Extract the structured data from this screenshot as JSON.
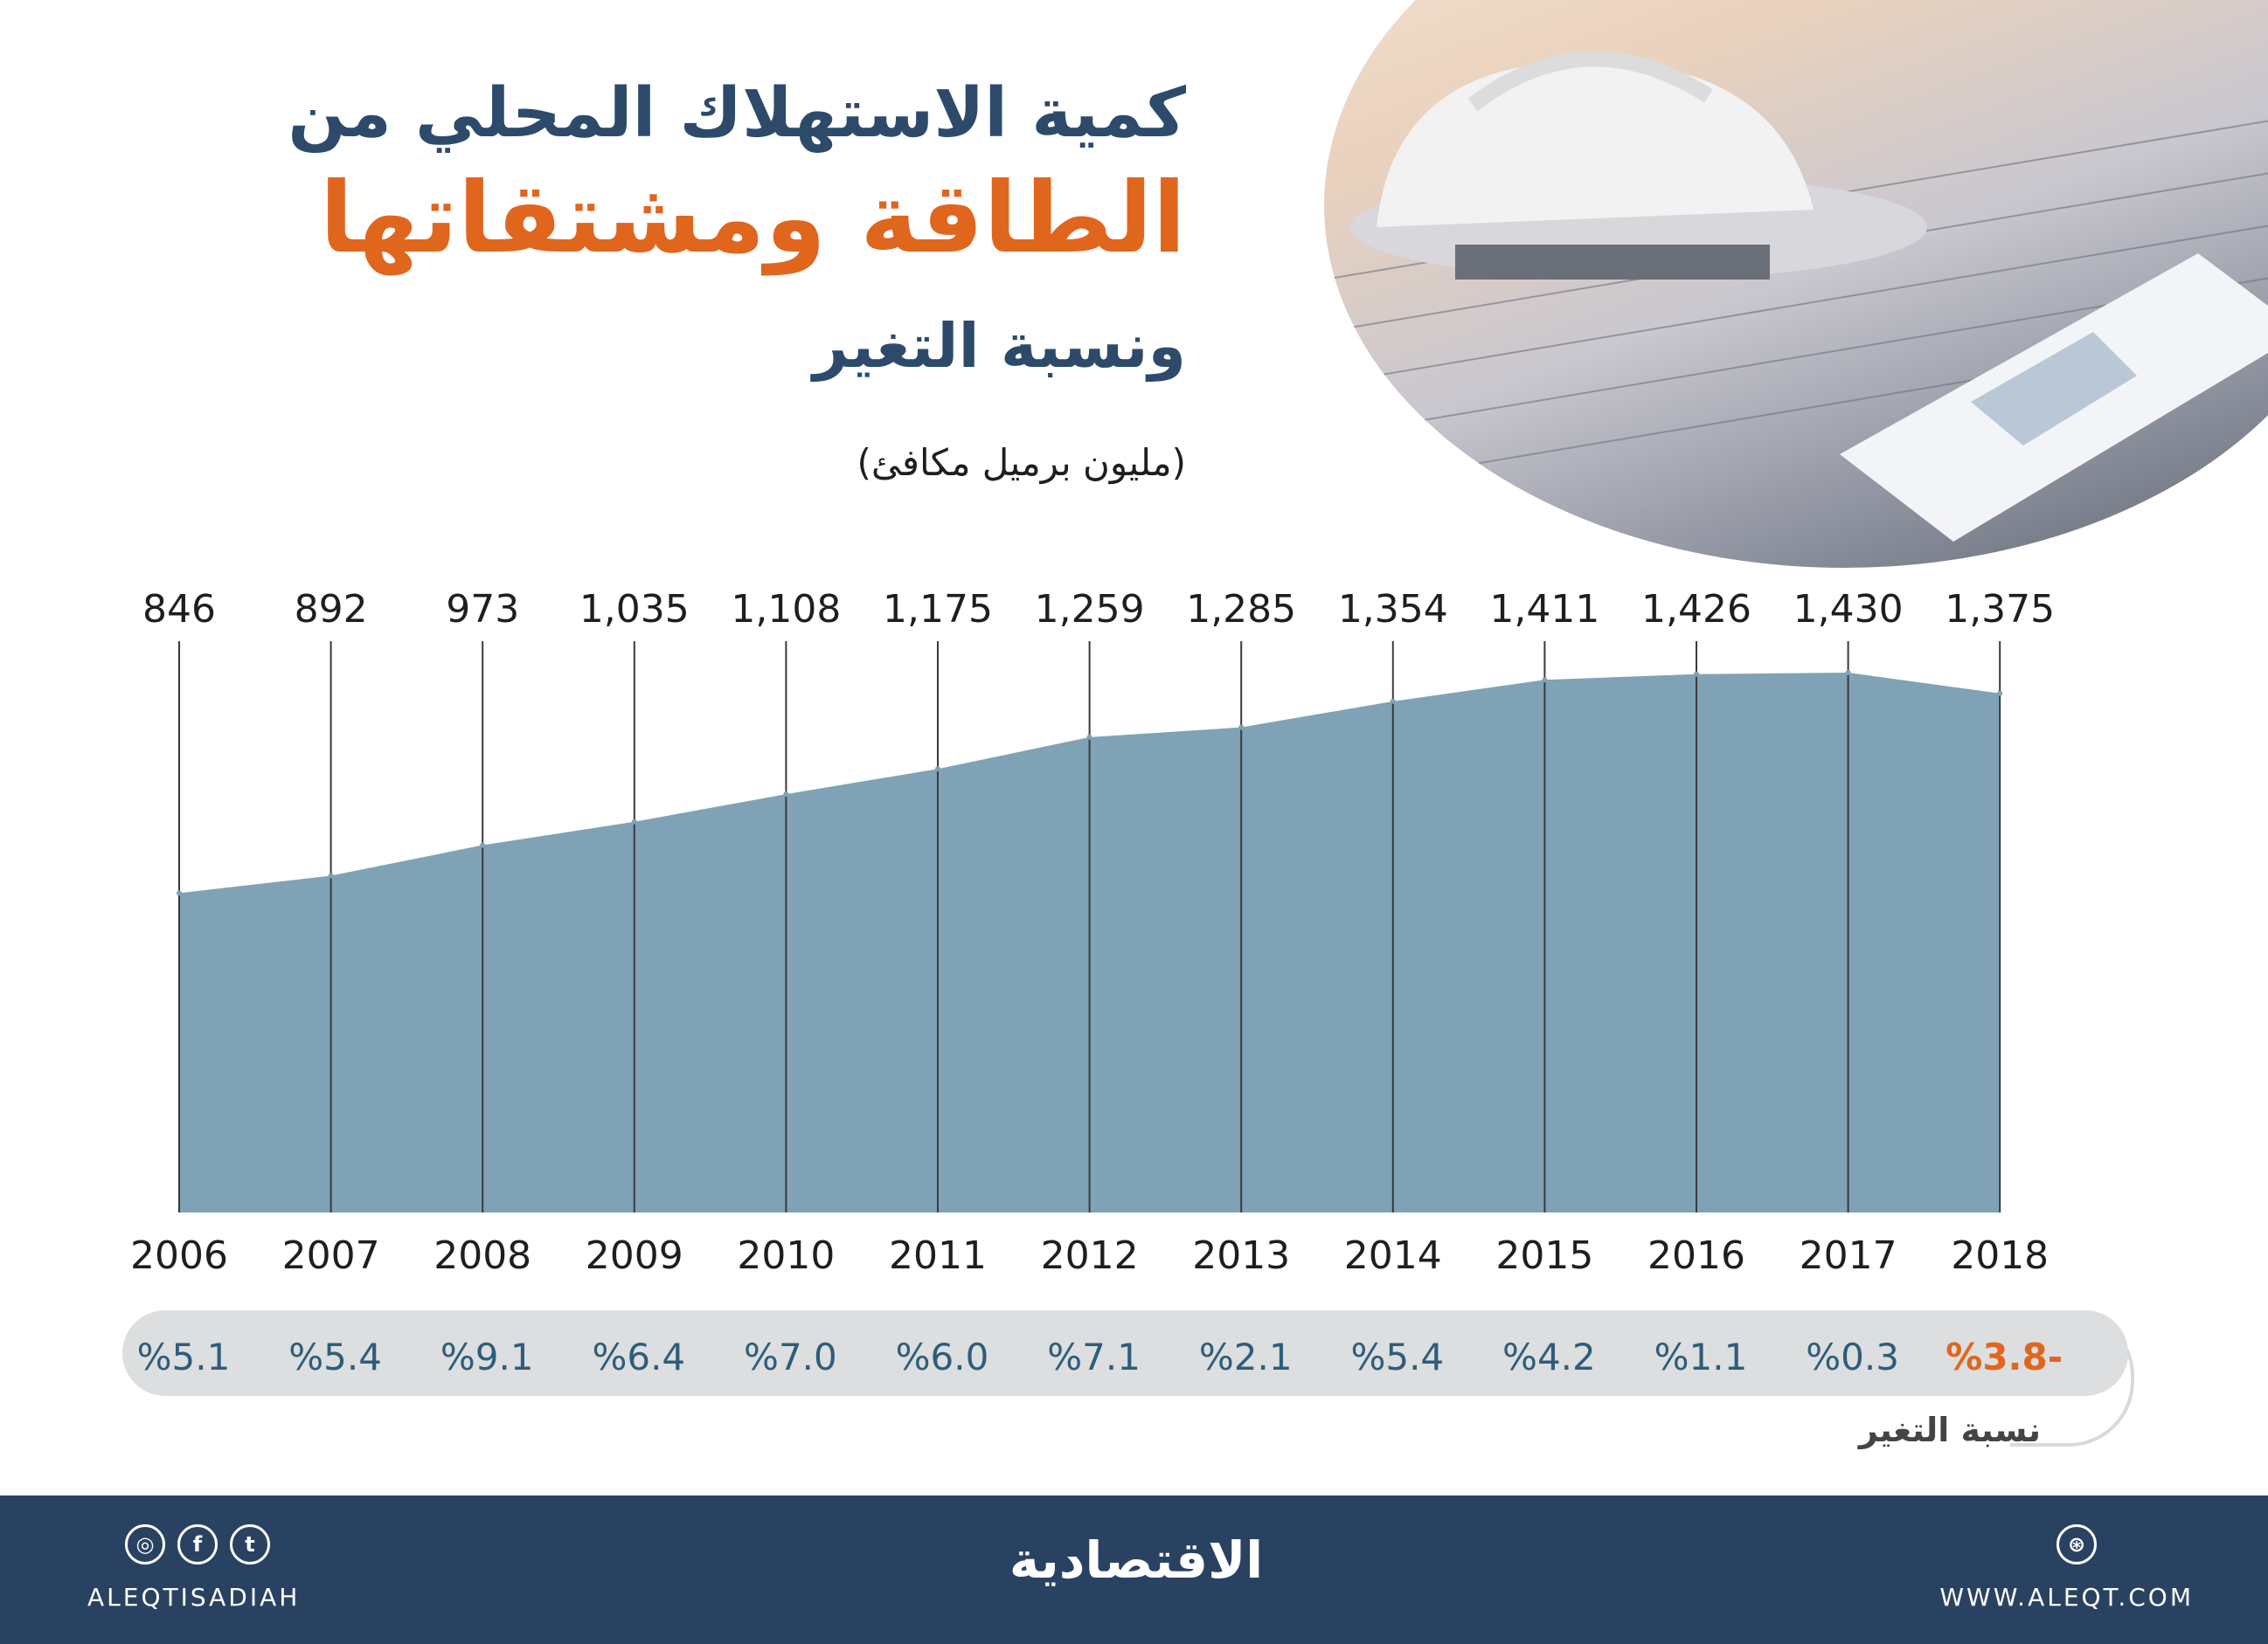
{
  "title": {
    "line1": "كمية الاستهلاك المحلي من",
    "line2": "الطاقة ومشتقاتها",
    "line3": "ونسبة التغير"
  },
  "unit_label": "(مليون برميل مكافئ)",
  "change_caption": "نسبة التغير",
  "colors": {
    "title_dark": "#2d4a6b",
    "title_accent": "#e0661e",
    "area_fill": "#7fa2b6",
    "change_text": "#2e5d7a",
    "negative_change": "#e0661e",
    "footer_bg": "#2a4262"
  },
  "chart_data": {
    "type": "area",
    "x": [
      "2006",
      "2007",
      "2008",
      "2009",
      "2010",
      "2011",
      "2012",
      "2013",
      "2014",
      "2015",
      "2016",
      "2017",
      "2018"
    ],
    "value_labels": [
      "846",
      "892",
      "973",
      "1,035",
      "1,108",
      "1,175",
      "1,259",
      "1,285",
      "1,354",
      "1,411",
      "1,426",
      "1,430",
      "1,375"
    ],
    "values": [
      846,
      892,
      973,
      1035,
      1108,
      1175,
      1259,
      1285,
      1354,
      1411,
      1426,
      1430,
      1375
    ],
    "changes": [
      "%5.1",
      "%5.4",
      "%9.1",
      "%6.4",
      "%7.0",
      "%6.0",
      "%7.1",
      "%2.1",
      "%5.4",
      "%4.2",
      "%1.1",
      "%0.3",
      "%3.8-"
    ],
    "ylim": [
      0,
      1430
    ]
  },
  "footer": {
    "handle": "ALEQTISADIAH",
    "url": "WWW.ALEQT.COM",
    "logo": "الاقتصادية",
    "icons": [
      "instagram-icon",
      "facebook-icon",
      "twitter-icon",
      "dribbble-icon"
    ],
    "icon_glyphs": {
      "instagram": "◎",
      "facebook": "f",
      "twitter": "t",
      "dribbble": "⊛"
    }
  }
}
